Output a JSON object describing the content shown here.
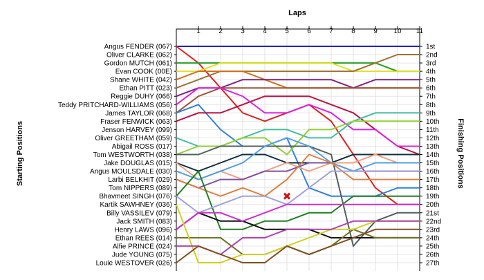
{
  "chart_data": {
    "type": "line",
    "title": "Laps",
    "ylabel_left": "Starting Positions",
    "ylabel_right": "Finishing Positions",
    "x": [
      0,
      1,
      2,
      3,
      4,
      5,
      6,
      7,
      8,
      9,
      10,
      11
    ],
    "x_tick_labels": [
      "1",
      "2",
      "3",
      "4",
      "5",
      "6",
      "7",
      "8",
      "9",
      "10",
      "11"
    ],
    "starting_labels": [
      "Angus FENDER (067)",
      "Oliver CLARKE (062)",
      "Gordon MUTCH (061)",
      "Evan COOK (00E)",
      "Shane WHITE (042)",
      "Ethan PITT (023)",
      "Reggie DUHY (066)",
      "Teddy PRITCHARD-WILLIAMS (056)",
      "James TAYLOR (068)",
      "Fraser FENWICK (063)",
      "Jenson HARVEY (099)",
      "Oliver GREETHAM (059)",
      "Abigail ROSS (017)",
      "Tom WESTWORTH (038)",
      "Jake DOUGLAS (015)",
      "Angus MOULSDALE (030)",
      "Larbi BELKHIT (029)",
      "Tom NIPPERS (089)",
      "Bhavmeet SINGH (076)",
      "Kartik SAWHNEY (036)",
      "Billy VASSILEV (079)",
      "Jack SMITH (083)",
      "Henry LAWS (096)",
      "Ethan REES (014)",
      "Alfie PRINCE (024)",
      "Jude YOUNG (075)",
      "Louie WESTOVER (026)"
    ],
    "finishing_labels": [
      "1st",
      "2nd",
      "3rd",
      "4th",
      "5th",
      "6th",
      "7th",
      "8th",
      "9th",
      "10th",
      "11th",
      "12th",
      "13th",
      "14th",
      "15th",
      "16th",
      "17th",
      "18th",
      "19th",
      "20th",
      "21st",
      "22nd",
      "23rd",
      "24th",
      "25th",
      "26th",
      "27th"
    ],
    "y_range": [
      1,
      27
    ],
    "retired_marker": {
      "x": 5,
      "y": 19
    },
    "series": [
      {
        "color": "#2020c8",
        "values": [
          1,
          1,
          1,
          1,
          1,
          1,
          1,
          1,
          1,
          1,
          1,
          1
        ]
      },
      {
        "color": "#e02020",
        "values": [
          1,
          3,
          6,
          9,
          10,
          9,
          8,
          10,
          14,
          18,
          20,
          20
        ]
      },
      {
        "color": "#20a020",
        "values": [
          3,
          3,
          3,
          3,
          3,
          3,
          3,
          3,
          3,
          3,
          4,
          4
        ]
      },
      {
        "color": "#e0e020",
        "values": [
          4,
          4,
          3,
          3,
          3,
          3,
          3,
          3,
          4,
          4,
          4,
          4
        ]
      },
      {
        "color": "#a07030",
        "values": [
          6,
          5,
          4,
          4,
          4,
          4,
          4,
          4,
          4,
          3,
          2,
          2
        ]
      },
      {
        "color": "#d07010",
        "values": [
          5,
          4,
          4,
          4,
          5,
          6,
          6,
          6,
          6,
          6,
          6,
          6
        ]
      },
      {
        "color": "#802080",
        "values": [
          7,
          6,
          6,
          5,
          5,
          5,
          5,
          5,
          6,
          5,
          5,
          5
        ]
      },
      {
        "color": "#a05030",
        "values": [
          9,
          7,
          6,
          6,
          6,
          6,
          6,
          6,
          6,
          6,
          6,
          6
        ]
      },
      {
        "color": "#3080e0",
        "values": [
          9,
          8,
          11,
          13,
          13,
          12,
          18,
          19,
          19,
          19,
          18,
          18
        ]
      },
      {
        "color": "#c01040",
        "values": [
          10,
          9,
          9,
          8,
          7,
          7,
          7,
          8,
          9,
          11,
          13,
          14
        ]
      },
      {
        "color": "#e020e0",
        "values": [
          8,
          6,
          6,
          7,
          9,
          9,
          8,
          9,
          11,
          11,
          13,
          13
        ]
      },
      {
        "color": "#40c0a0",
        "values": [
          12,
          13,
          13,
          12,
          11,
          11,
          12,
          12,
          10,
          9,
          9,
          9
        ]
      },
      {
        "color": "#90d030",
        "values": [
          14,
          13,
          13,
          12,
          12,
          14,
          11,
          11,
          10,
          10,
          10,
          10
        ]
      },
      {
        "color": "#506060",
        "values": [
          14,
          14,
          13,
          13,
          13,
          13,
          13,
          14,
          25,
          22,
          21,
          21
        ]
      },
      {
        "color": "#103040",
        "values": [
          15,
          16,
          15,
          14,
          14,
          15,
          15,
          15,
          14,
          14,
          14,
          14
        ]
      },
      {
        "color": "#f0a080",
        "values": [
          15,
          17,
          16,
          17,
          16,
          15,
          16,
          15,
          15,
          14,
          15,
          15
        ]
      },
      {
        "color": "#8050a0",
        "values": [
          17,
          18,
          17,
          17,
          16,
          16,
          15,
          15,
          16,
          16,
          16,
          16
        ]
      },
      {
        "color": "#50a0e0",
        "values": [
          16,
          17,
          16,
          15,
          13,
          12,
          13,
          15,
          16,
          15,
          15,
          15
        ]
      },
      {
        "color": "#e08040",
        "values": [
          17,
          18,
          19,
          18,
          19,
          17,
          14,
          15,
          17,
          17,
          17,
          17
        ]
      },
      {
        "color": "#208020",
        "values": [
          19,
          16,
          23,
          23,
          22,
          22,
          21,
          21,
          19,
          19,
          19,
          19
        ]
      },
      {
        "color": "#a0a0e0",
        "values": [
          19,
          21,
          20,
          19,
          19,
          20,
          18,
          16,
          16,
          16,
          16,
          16
        ]
      },
      {
        "color": "#101010",
        "values": [
          23,
          21,
          22,
          22,
          23,
          23,
          23,
          24,
          24,
          24,
          24,
          24
        ]
      },
      {
        "color": "#d030d0",
        "values": [
          23,
          21,
          21,
          22,
          21,
          20,
          20,
          20,
          20,
          20,
          20,
          20
        ]
      },
      {
        "color": "#707020",
        "values": [
          24,
          24,
          24,
          26,
          26,
          25,
          26,
          25,
          23,
          24,
          24,
          24
        ]
      },
      {
        "color": "#d0d020",
        "values": [
          20,
          27,
          27,
          26,
          26,
          25,
          24,
          23,
          23,
          22,
          22,
          22
        ]
      },
      {
        "color": "#b040b0",
        "values": [
          25,
          25,
          26,
          24,
          24,
          23,
          23,
          23,
          22,
          22,
          22,
          22
        ]
      },
      {
        "color": "#805020",
        "values": [
          27,
          25,
          26,
          27,
          27,
          25,
          26,
          25,
          24,
          23,
          23,
          23
        ]
      }
    ]
  }
}
